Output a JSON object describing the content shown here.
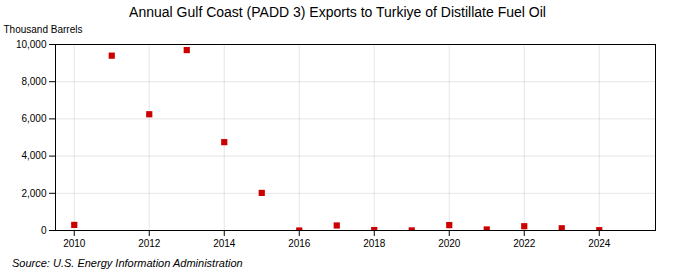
{
  "chart_data": {
    "type": "scatter",
    "title": "Annual Gulf Coast (PADD 3) Exports to Turkiye of Distillate Fuel Oil",
    "ylabel": "Thousand Barrels",
    "annotations": [
      "Source: U.S. Energy Information Administration"
    ],
    "x": [
      2010,
      2011,
      2012,
      2013,
      2014,
      2015,
      2016,
      2017,
      2018,
      2019,
      2020,
      2021,
      2022,
      2023,
      2024
    ],
    "values": [
      300,
      9400,
      6250,
      9700,
      4750,
      2020,
      0,
      270,
      25,
      5,
      290,
      55,
      230,
      120,
      18
    ],
    "color": "#cc0000",
    "marker": "square",
    "xlim": [
      2009.5,
      2025.5
    ],
    "xticks": [
      2010,
      2012,
      2014,
      2016,
      2018,
      2020,
      2022,
      2024
    ],
    "ylim": [
      0,
      10000
    ],
    "yticks": [
      0,
      {
        "value": 2000,
        "label": "2,000"
      },
      {
        "value": 4000,
        "label": "4,000"
      },
      {
        "value": 6000,
        "label": "6,000"
      },
      {
        "value": 8000,
        "label": "8,000"
      },
      {
        "value": 10000,
        "label": "10,000"
      }
    ],
    "grid": true
  }
}
